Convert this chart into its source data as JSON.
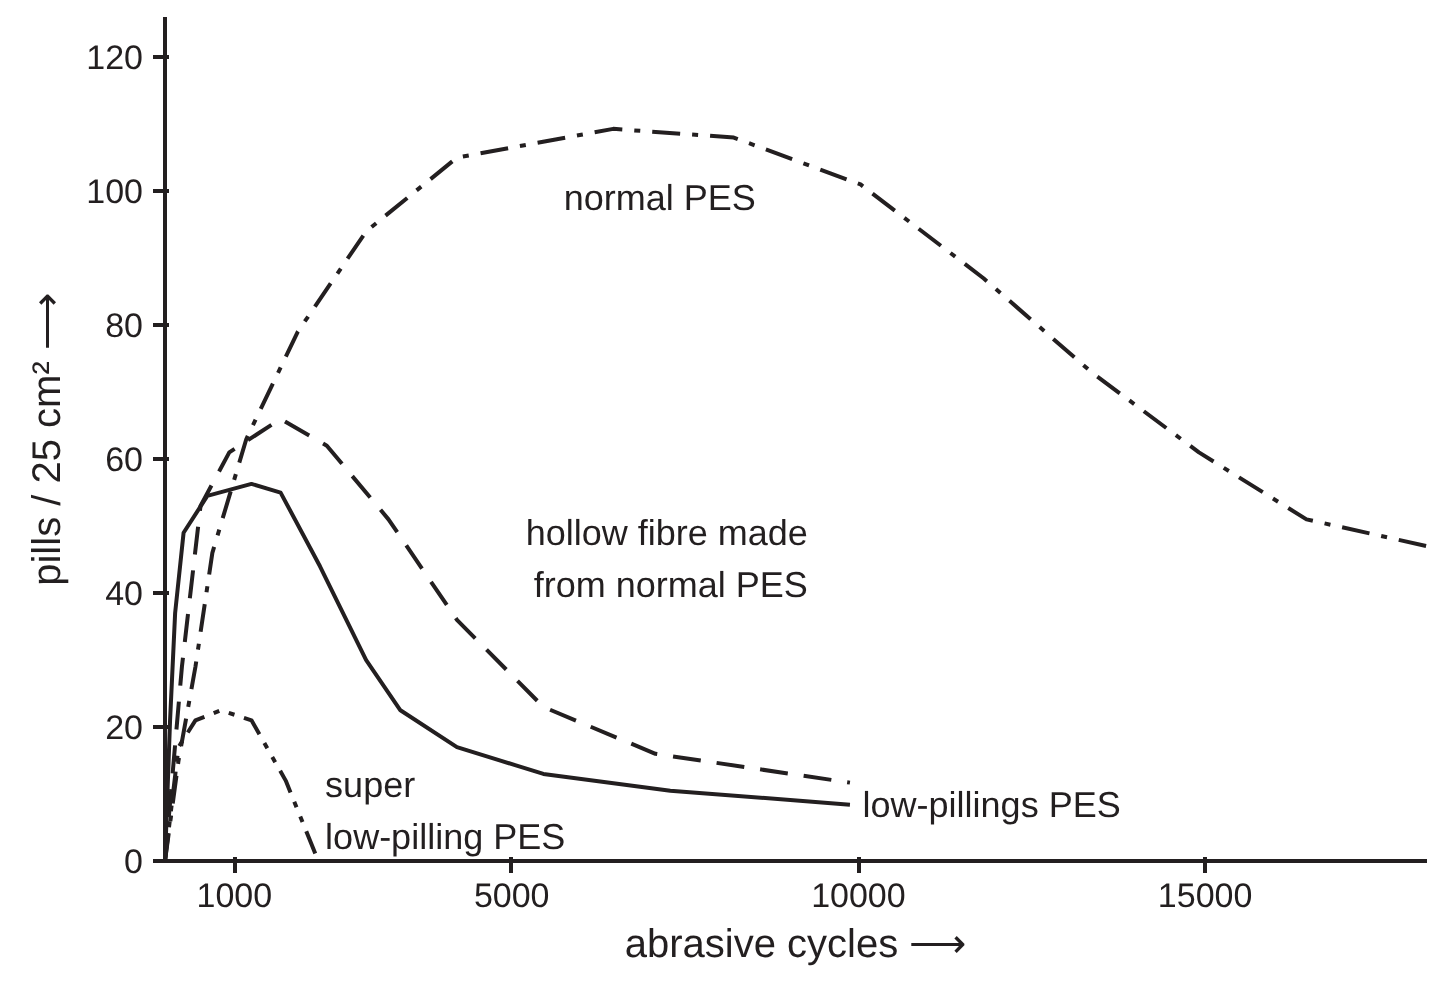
{
  "chart_data": {
    "type": "line",
    "xlabel": "abrasive cycles ⟶",
    "ylabel": "pills / 25 cm² ⟶",
    "xlim": [
      0,
      18200
    ],
    "xticks": [
      1000,
      5000,
      10000,
      15000
    ],
    "ylim": [
      0,
      126
    ],
    "yticks": [
      0,
      20,
      40,
      60,
      80,
      100,
      120
    ],
    "grid": false,
    "legend": false,
    "marker": "none",
    "series": [
      {
        "name": "normal PES",
        "color": "#231f20",
        "line_style": "dashdot",
        "x": [
          0,
          195,
          439,
          683,
          1173,
          1914,
          2901,
          4210,
          6464,
          8202,
          10031,
          11804,
          13359,
          14911,
          16462,
          18200
        ],
        "values": [
          0,
          15,
          29,
          46,
          63,
          79,
          94,
          105,
          109.3,
          108,
          101,
          87,
          73,
          61,
          51,
          47
        ]
      },
      {
        "name": "hollow fibre made\nfrom normal PES",
        "color": "#231f20",
        "line_style": "dashed",
        "x": [
          0,
          244,
          512,
          927,
          1667,
          2334,
          3223,
          4210,
          5457,
          7073,
          9878
        ],
        "values": [
          0,
          29,
          53,
          61,
          66,
          62,
          51,
          36,
          23,
          16,
          11.7
        ]
      },
      {
        "name": "low-pillings PES",
        "color": "#231f20",
        "line_style": "solid",
        "x": [
          0,
          73,
          146,
          268,
          610,
          1247,
          1667,
          2235,
          2901,
          3395,
          4210,
          5457,
          7287,
          9878
        ],
        "values": [
          0,
          21,
          37,
          49,
          54.5,
          56.3,
          55,
          44,
          30,
          22.5,
          17,
          13,
          10.5,
          8.4
        ]
      },
      {
        "name": "super\nlow-pilling PES",
        "color": "#231f20",
        "line_style": "dashdotdot",
        "x": [
          0,
          195,
          439,
          805,
          1247,
          1741,
          2210
        ],
        "values": [
          0,
          17,
          21,
          22.5,
          21,
          12,
          0
        ]
      }
    ]
  }
}
